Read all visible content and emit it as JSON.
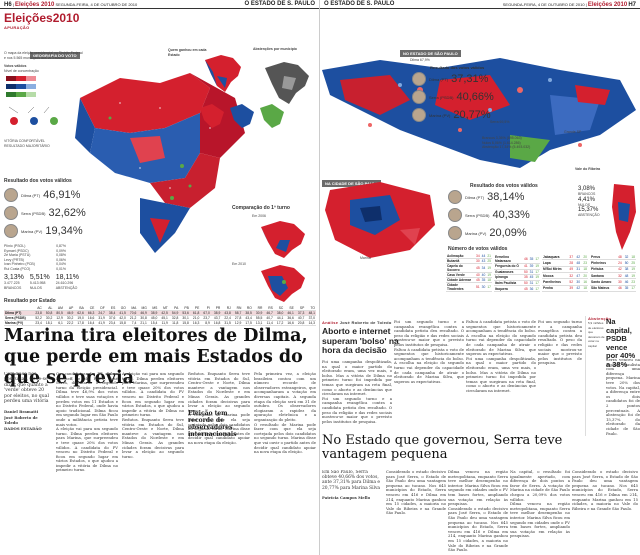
{
  "left_page": {
    "topbar": {
      "page_number": "H6",
      "section": "Eleições 2010",
      "date": "SEGUNDA-FEIRA, 4 DE OUTUBRO DE 2010",
      "paper": "O ESTADO DE S. PAULO"
    },
    "section_label": "Eleições2010",
    "kicker": "APURAÇÃO",
    "map_title": "GEOGRAFIA DO VOTO",
    "map_note": "O mapa da eleição presidencial no Distrito Federal e nos 5.565 municípios dos 26 Estados",
    "legend_title": "Votos válidos",
    "legend_sub": "Nível de concentração",
    "legend_labels": [
      "VITÓRIA CONFORTÁVEL",
      "VITÓRIA APERTADA",
      "RESULTADO MAJORITÁRIO",
      "NÍVEL DE ABSTENÇÃO"
    ],
    "won_each_state": "Quem ganhou em cada Estado",
    "abstention_label": "Abstenções por município",
    "capital_label": "Capitais",
    "region_labels": [
      "Dilma",
      "Serra",
      "Marina"
    ],
    "results_title": "Resultado dos votos válidos",
    "candidates": [
      {
        "name": "Dilma (PT)",
        "pct": "46,91%"
      },
      {
        "name": "Serra (PSDB)",
        "pct": "32,62%"
      },
      {
        "name": "Marina (PV)",
        "pct": "19,34%"
      }
    ],
    "others": [
      {
        "name": "Plínio (PSOL)",
        "pct": "0,87%"
      },
      {
        "name": "Eymael (PSDC)",
        "pct": "0,09%"
      },
      {
        "name": "Zé Maria (PSTU)",
        "pct": "0,08%"
      },
      {
        "name": "Levy (PRTB)",
        "pct": "0,06%"
      },
      {
        "name": "Ivan Pinheiro (PCB)",
        "pct": "0,04%"
      },
      {
        "name": "Rui Costa (PCO)",
        "pct": "0,01%"
      }
    ],
    "totals": [
      {
        "label": "BRANCOS",
        "value": "3,13%"
      },
      {
        "label": "NULOS",
        "value": "5,51%"
      },
      {
        "label": "ABSTENÇÃO",
        "value": "18,11%"
      }
    ],
    "totals_counts": [
      "3.477.225",
      "5.413.958",
      "24.610.296"
    ],
    "comparison_title": "Comparação do 1º turno",
    "comparison_years": [
      "Em 2006",
      "Em 2010"
    ],
    "map_labels": [
      "Bahia",
      "São Paulo",
      "Rio Grande do Sul",
      "Minas Gerais",
      "Pernambuco"
    ],
    "state_results_title": "Resultado por Estado",
    "state_headers": [
      "AC",
      "AL",
      "AM",
      "AP",
      "BA",
      "CE",
      "DF",
      "ES",
      "GO",
      "MA",
      "MG",
      "MS",
      "MT",
      "PA",
      "PB",
      "PE",
      "PI",
      "PR",
      "RJ",
      "RN",
      "RO",
      "RR",
      "RS",
      "SC",
      "SE",
      "SP",
      "TO"
    ],
    "state_rows": [
      {
        "name": "Dilma (PT)",
        "cells": [
          "23,8",
          "50,8",
          "80,5",
          "46,9",
          "62,6",
          "66,3",
          "24,7",
          "38,4",
          "41,5",
          "70,6",
          "46,9",
          "38,9",
          "42,5",
          "54,9",
          "53,6",
          "61,8",
          "67,0",
          "38,9",
          "43,8",
          "58,7",
          "38,5",
          "30,9",
          "46,7",
          "38,0",
          "46,1",
          "37,3",
          "48,1"
        ]
      },
      {
        "name": "Serra (PSDB)",
        "cells": [
          "52,2",
          "30,2",
          "12,9",
          "30,2",
          "19,0",
          "16,6",
          "31,9",
          "37,6",
          "42,0",
          "21,2",
          "30,8",
          "45,0",
          "45,1",
          "32,8",
          "30,1",
          "21,0",
          "23,7",
          "43,7",
          "22,4",
          "27,8",
          "43,4",
          "55,5",
          "40,7",
          "44,1",
          "36,6",
          "40,7",
          "37,0"
        ]
      },
      {
        "name": "Marina (PV)",
        "cells": [
          "23,4",
          "18,1",
          "6,1",
          "22,2",
          "17,8",
          "16,4",
          "41,9",
          "23,4",
          "15,8",
          "7,4",
          "21,1",
          "15,4",
          "11,9",
          "11,8",
          "15,8",
          "16,3",
          "8,9",
          "16,8",
          "31,5",
          "12,9",
          "17,5",
          "13,1",
          "11,4",
          "17,2",
          "16,6",
          "20,8",
          "14,3"
        ]
      }
    ],
    "headline": "Marina tira eleitores de Dilma, que perde em mais Estados do que se previa",
    "deck": "Com base nos pesquisas, pode-se dizer que quanto a 'verde' obteve 20 por eleitos, no qual perdeu uma vitória",
    "byline": "Daniel Bramatti\nJosé Roberto de Toledo\nDADOS ESTADÃO",
    "body": [
      "Os candidatos do PT, Dilma Rousseff, e do PSDB, José Serra, disputarão o segundo turno da eleição presidencial. Dilma teve 46,9% dos votos válidos e teve suas votações e perdeu votos em 11 Estados e no Distrito Federal, onde havia apoio tradicional. Dilma ficou em segundo lugar em São Paulo onde a militância petista teve mais votos.",
      "A eleição vai para um segundo turno. Dilma perdeu eleitores para Marina, que surpreendeu e teve quase 20% dos votos válidos. A candidata do PV venceu no Distrito Federal e ficou em segundo lugar em vários Estados, o que ajudou a impedir a vitória de Dilma no primeiro turno.",
      "Redutos. Enquanto Serra teve vitória em Estados do Sul, Centro-Oeste e Norte, Dilma manteve a vantagem nos Estados do Nordeste e em Minas Gerais. As grandes cidades foram decisivas para levar a eleição ao segundo turno.",
      "O resultado de Marina pode fazer com que ela seja cortejada pelos dois candidatos no segundo turno. Marina disse que vai ouvir o partido antes de decidir qual candidato apoiar na nova etapa da eleição."
    ],
    "sub_heading": "Eleição tem recorde de observadores internacionais",
    "sub_body": "Pela primeira vez, a eleição brasileira contou com um número recorde de observadores estrangeiros, que acompanharam a votação em diversas capitais. A segunda etapa da eleição será em 31 de outubro. Os observadores elogiaram a rapidez da apuração eletrônica e a organização do pleito."
  },
  "right_page": {
    "topbar": {
      "paper": "O ESTADO DE S. PAULO",
      "date": "SEGUNDA-FEIRA, 4 DE OUTUBRO DE 2010",
      "section": "Eleições 2010",
      "page_number": "H7"
    },
    "sp_state_title": "NO ESTADO DE SÃO PAULO",
    "sp_city_title": "NA CIDADE DE SÃO PAULO",
    "state_results_title": "Resultado dos votos válidos",
    "state_candidates": [
      {
        "name": "Dilma (PT)",
        "pct": "37,31%"
      },
      {
        "name": "Serra (PSDB)",
        "pct": "40,66%"
      },
      {
        "name": "Marina (PV)",
        "pct": "20,77%"
      }
    ],
    "state_totals": [
      "Brancos 3,36% (895.063)",
      "Nulos 6,06% (1.614.286)",
      "Abstenção 17,34% (5.493.032)"
    ],
    "state_map_labels": [
      "Vale do Ribeira",
      "Grande SP",
      "Dilma 67,9%",
      "Serra 69,5%",
      "Marina"
    ],
    "city_results_title": "Resultado dos votos válidos",
    "city_candidates": [
      {
        "name": "Dilma (PT)",
        "pct": "38,14%"
      },
      {
        "name": "Serra (PSDB)",
        "pct": "40,33%"
      },
      {
        "name": "Marina (PV)",
        "pct": "20,09%"
      }
    ],
    "city_side_stats": [
      "3,08%",
      "4,41%",
      "15,37%"
    ],
    "city_side_labels": [
      "BRANCOS",
      "NULOS",
      "ABSTENÇÃO"
    ],
    "district_table_title": "Número de votos válidos",
    "district_headers": [
      "Zona",
      "Dilma",
      "Serra",
      "Marina"
    ],
    "district_rows": [
      [
        "Aclimação",
        "34",
        "44",
        "21"
      ],
      [
        "Butantã",
        "30",
        "43",
        "25"
      ],
      [
        "Capela do Socorro",
        "45",
        "34",
        "19"
      ],
      [
        "Casa Verde",
        "40",
        "40",
        "19"
      ],
      [
        "Cidade Ademar",
        "45",
        "35",
        "18"
      ],
      [
        "Cidade Tiradentes",
        "51",
        "30",
        "17"
      ],
      [
        "Ermelino Matarazzo",
        "46",
        "35",
        "17"
      ],
      [
        "Freguesia do Ó",
        "41",
        "39",
        "19"
      ],
      [
        "Guaianases",
        "50",
        "31",
        "17"
      ],
      [
        "Ipiranga",
        "35",
        "45",
        "19"
      ],
      [
        "Itaim Paulista",
        "50",
        "31",
        "17"
      ],
      [
        "Itaquera",
        "45",
        "36",
        "17"
      ],
      [
        "Jabaquara",
        "37",
        "42",
        "20"
      ],
      [
        "Lapa",
        "28",
        "48",
        "23"
      ],
      [
        "M'Boi Mirim",
        "49",
        "31",
        "18"
      ],
      [
        "Mooca",
        "32",
        "47",
        "20"
      ],
      [
        "Parelheiros",
        "52",
        "30",
        "16"
      ],
      [
        "Penha",
        "39",
        "42",
        "18"
      ],
      [
        "Perus",
        "48",
        "32",
        "18"
      ],
      [
        "Pinheiros",
        "24",
        "50",
        "25"
      ],
      [
        "Pirituba",
        "42",
        "38",
        "19"
      ],
      [
        "Santana",
        "32",
        "48",
        "19"
      ],
      [
        "Santo Amaro",
        "30",
        "46",
        "23"
      ],
      [
        "São Mateus",
        "46",
        "35",
        "17"
      ]
    ],
    "analysis_kicker": "Análise",
    "analysis_byline": "José Roberto de Toledo",
    "analysis_title": "Aborto e internet superam 'bolso' na hora da decisão",
    "analysis_body": [
      "Foi uma campanha despolitizada, na qual o maior partido do eleitorado eram, uma vez mais, o bolso. Mas a vitória de Dilma no primeiro turno foi impedida por temas que surgiram na reta final, como o aborto e as denúncias que circularam na internet.",
      "Foi um segundo turno e a campanha evangélica contra a candidata petista deu resultado. O peso da religião e das redes sociais mostrou-se maior que o previsto pelos institutos de pesquisa.",
      "Faltou à candidata petista o voto de segmentos que historicamente acompanham a tendência do bolso. A escolha na eleição do segundo turno vai depender da capacidade de cada campanha de atrair o eleitorado de Marina Silva, que superou as expectativas."
    ],
    "side_kicker": "Abstenção",
    "side_note": "5,9 milhões de eleitores que deixaram de votar na capital",
    "capital_title": "Na capital, PSDB vence por 40% a 38%",
    "capital_body": "Serra venceu na capital paulista com uma diferença pequena. Marina teve 20% dos votos. Na capital, a diferença entre os dois candidatos foi de 2 pontos percentuais. A abstenção foi de 15,37% do eleitorado da cidade de São Paulo.",
    "bottom_headline": "No Estado que governou, Serra teve vantagem pequena",
    "bottom_deck": "Em São Paulo, Serra obteve 40,66% dos votos, ante 37,31% para Dilma e 20,77% para Marina Silva",
    "bottom_byline": "Patrícia Campos Mello",
    "bottom_body": [
      "Considerado o estado decisivo para José Serra, o Estado de São Paulo deu uma vantagem pequena ao tucano. Nos 645 municípios do Estado, Serra venceu em 416 e Dilma em 214, enquanto Marina ganhou em 15 cidades, a maioria no Vale do Ribeira e na Grande São Paulo.",
      "Dilma venceu na região metropolitana, enquanto Serra teve melhor desempenho no interior. Marina Silva ficou em segundo em cidades onde o PV tem bases fortes, ampliando sua votação em relação às pesquisas.",
      "Na capital, o resultado foi igualmente apertado, com diferença de dois pontos a favor de Serra. A votação de Marina na cidade de São Paulo chegou a 20,09% dos votos válidos."
    ]
  },
  "colors": {
    "accent": "#b01c2e",
    "dilma": "#d4202e",
    "serra": "#1d4fa0",
    "marina": "#5aa846"
  }
}
